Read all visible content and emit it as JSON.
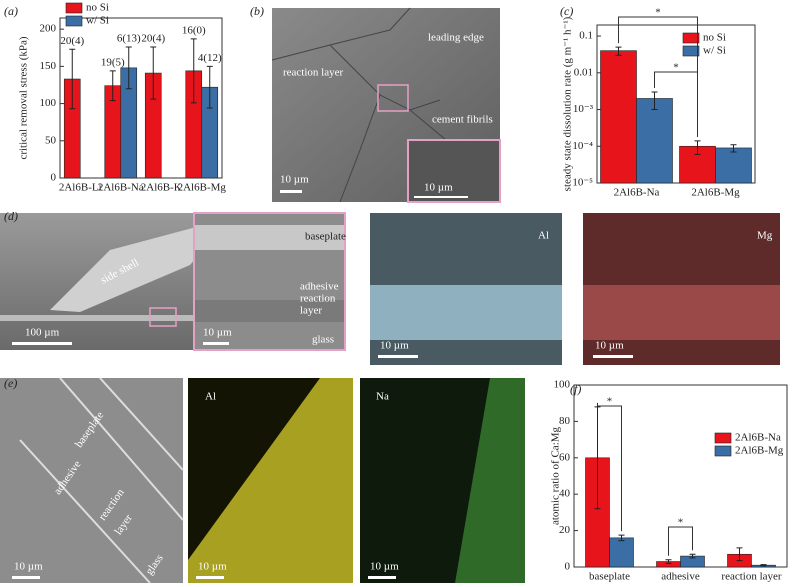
{
  "chart_data": [
    {
      "type": "bar",
      "panel_label": "(a)",
      "y_label": "critical removal stress (kPa)",
      "categories": [
        "2Al6B-Li",
        "2Al6B-Na",
        "2Al6B-K",
        "2Al6B-Mg"
      ],
      "series": [
        {
          "name": "no Si",
          "color": "#e8141c",
          "values": [
            133,
            124,
            141,
            144
          ],
          "errors": [
            40,
            20,
            35,
            43
          ],
          "annotations": [
            "20(4)",
            "19(5)",
            "20(4)",
            "16(0)"
          ]
        },
        {
          "name": "w/ Si",
          "color": "#3a6ea5",
          "values": [
            null,
            148,
            null,
            122
          ],
          "errors": [
            null,
            28,
            null,
            28
          ],
          "annotations": [
            null,
            "6(13)",
            null,
            "4(12)"
          ]
        }
      ],
      "ylim": [
        0,
        215
      ],
      "yticks": [
        0,
        50,
        100,
        150,
        200
      ],
      "log_scale": false,
      "legend": "upper left",
      "significance_labels": []
    },
    {
      "type": "bar",
      "panel_label": "(c)",
      "y_label": "steady state dissolution rate (g m⁻¹ h⁻¹)",
      "categories": [
        "2Al6B-Na",
        "2Al6B-Mg"
      ],
      "series": [
        {
          "name": "no Si",
          "color": "#e8141c",
          "values": [
            0.04,
            0.0001
          ],
          "errors": [
            0.01,
            4e-05
          ]
        },
        {
          "name": "w/ Si",
          "color": "#3a6ea5",
          "values": [
            0.002,
            9e-05
          ],
          "errors": [
            0.001,
            2e-05
          ]
        }
      ],
      "ylim": [
        1e-05,
        0.2
      ],
      "yticks": [
        {
          "value": 1e-05,
          "label": "10⁻⁵"
        },
        {
          "value": 0.0001,
          "label": "10⁻⁴"
        },
        {
          "value": 0.001,
          "label": "10⁻³"
        },
        0.01,
        0.1
      ],
      "log_scale": true,
      "legend": "upper right",
      "significance_labels": [
        "*",
        "*"
      ]
    },
    {
      "type": "bar",
      "panel_label": "(f)",
      "y_label": "atomic ratio of Ca:Mg",
      "categories": [
        "baseplate",
        "adhesive",
        "reaction layer"
      ],
      "series": [
        {
          "name": "2Al6B-Na",
          "color": "#e8141c",
          "values": [
            60,
            3,
            7
          ],
          "errors": [
            28,
            1,
            3.5
          ]
        },
        {
          "name": "2Al6B-Mg",
          "color": "#3a6ea5",
          "values": [
            16,
            6,
            1
          ],
          "errors": [
            1.5,
            1,
            0.3
          ]
        }
      ],
      "ylim": [
        0,
        100
      ],
      "yticks": [
        0,
        20,
        40,
        60,
        80,
        100
      ],
      "log_scale": false,
      "legend": "upper right",
      "significance_labels": [
        "*",
        "*"
      ]
    }
  ],
  "images": {
    "b": {
      "panel_label": "(b)",
      "leading_edge": "leading edge",
      "reaction_layer": "reaction layer",
      "cement_fibrils": "cement fibrils",
      "scale": "10 µm",
      "inset_scale": "10 µm"
    },
    "d": {
      "panel_label": "(d)",
      "side_shell": "side shell",
      "baseplate": "baseplate",
      "adhesive": "adhesive",
      "reaction": "reaction",
      "layer": "layer",
      "glass": "glass",
      "scale": "100 µm",
      "inset_scale": "10 µm",
      "al": "Al",
      "al_scale": "10 µm",
      "mg": "Mg",
      "mg_scale": "10 µm"
    },
    "e": {
      "panel_label": "(e)",
      "baseplate": "baseplate",
      "adhesive": "adhesive",
      "reaction": "reaction",
      "layer": "layer",
      "glass": "glass",
      "scale": "10 µm",
      "al": "Al",
      "al_scale": "10 µm",
      "na": "Na",
      "na_scale": "10 µm"
    }
  }
}
